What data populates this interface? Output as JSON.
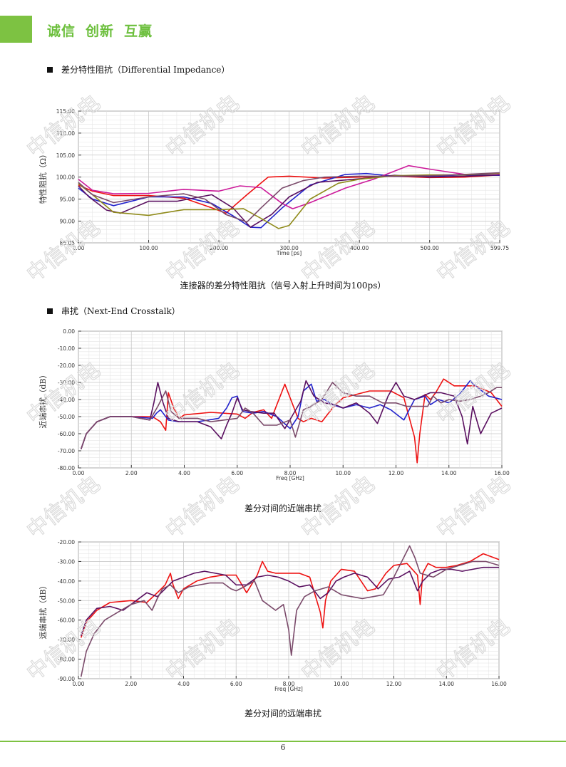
{
  "header": {
    "slogan": [
      "诚信",
      "创新",
      "互赢"
    ]
  },
  "sections": {
    "impedance_heading": "差分特性阻抗（Differential Impedance）",
    "crosstalk_heading": "串扰（Next-End Crosstalk）"
  },
  "captions": {
    "impedance": "连接器的差分特性阻抗（信号入射上升时间为100ps）",
    "next": "差分对间的近端串扰",
    "fext": "差分对间的远端串扰"
  },
  "watermark_text": "中信机电",
  "page_number": "6",
  "colors": {
    "brand_green": "#7dc242",
    "red": "#ee1111",
    "blue": "#2222cc",
    "magenta": "#cc1a9a",
    "purple": "#5a1060",
    "olive": "#8f8a1a",
    "mauve": "#7a4a6a"
  },
  "chart_data": [
    {
      "type": "line",
      "title": "",
      "xlabel": "Time [ps]",
      "ylabel": "特性阻抗（Ω）",
      "xlim": [
        0,
        599.75
      ],
      "ylim": [
        85.05,
        115.0
      ],
      "xticks": [
        "0.00",
        "100.00",
        "200.00",
        "300.00",
        "400.00",
        "500.00",
        "599.75"
      ],
      "yticks": [
        "115.00",
        "110.00",
        "105.00",
        "100.00",
        "95.00",
        "90.00",
        "85.05"
      ],
      "series": [
        {
          "color": "#ee1111",
          "x": [
            0,
            20,
            50,
            100,
            150,
            190,
            210,
            240,
            270,
            300,
            350,
            400,
            450,
            500,
            550,
            599.75
          ],
          "y": [
            98.2,
            96.8,
            95.8,
            95.8,
            95.2,
            93,
            91.8,
            96,
            100,
            100.2,
            99.8,
            100,
            100.2,
            99.9,
            100,
            100.5
          ]
        },
        {
          "color": "#2222cc",
          "x": [
            0,
            20,
            50,
            100,
            150,
            190,
            220,
            245,
            260,
            290,
            330,
            380,
            410,
            450,
            500,
            550,
            599.75
          ],
          "y": [
            97.5,
            95,
            93.5,
            95.5,
            95.5,
            94,
            91.2,
            88.6,
            88.5,
            93,
            98.2,
            100.6,
            100.8,
            100.2,
            100.2,
            100.5,
            100.4
          ]
        },
        {
          "color": "#cc1a9a",
          "x": [
            0,
            20,
            50,
            100,
            150,
            200,
            230,
            260,
            290,
            305,
            330,
            380,
            420,
            470,
            500,
            550,
            599.75
          ],
          "y": [
            99.5,
            97,
            96.2,
            96.3,
            97.2,
            96.8,
            98,
            97.6,
            94,
            92.8,
            94.2,
            97.5,
            99.5,
            102.6,
            101.8,
            100.6,
            100.8
          ]
        },
        {
          "color": "#5a1060",
          "x": [
            0,
            15,
            40,
            60,
            100,
            140,
            190,
            220,
            245,
            275,
            300,
            340,
            400,
            450,
            500,
            550,
            599.75
          ],
          "y": [
            98,
            95.5,
            92.5,
            91.8,
            94.5,
            94.5,
            96,
            93,
            88.6,
            91.5,
            95.5,
            98.8,
            99.6,
            100.4,
            100,
            100.2,
            100.5
          ]
        },
        {
          "color": "#8f8a1a",
          "x": [
            0,
            20,
            50,
            100,
            150,
            200,
            235,
            260,
            285,
            300,
            330,
            370,
            400,
            450,
            500,
            550,
            599.75
          ],
          "y": [
            98.5,
            96,
            92,
            91.3,
            92.6,
            92.6,
            92.8,
            90.6,
            88.3,
            89,
            95,
            98.6,
            99.5,
            100.3,
            100.5,
            100.5,
            100.9
          ]
        },
        {
          "color": "#7a4a6a",
          "x": [
            0,
            20,
            50,
            100,
            150,
            180,
            210,
            240,
            260,
            290,
            320,
            350,
            400,
            450,
            500,
            550,
            599.75
          ],
          "y": [
            98.8,
            96,
            94.2,
            95.5,
            96.2,
            95,
            91.5,
            89.8,
            93,
            97.5,
            99.2,
            100,
            100.2,
            100.2,
            100.3,
            100.6,
            101
          ]
        }
      ]
    },
    {
      "type": "line",
      "title": "",
      "xlabel": "Freq [GHz]",
      "ylabel": "近端串扰（dB）",
      "xlim": [
        0,
        16
      ],
      "ylim": [
        -80,
        0
      ],
      "xticks": [
        "0.00",
        "2.00",
        "4.00",
        "6.00",
        "8.00",
        "10.00",
        "12.00",
        "14.00",
        "16.00"
      ],
      "yticks": [
        "0.00",
        "-10.00",
        "-20.00",
        "-30.00",
        "-40.00",
        "-50.00",
        "-60.00",
        "-70.00",
        "-80.00"
      ],
      "series": [
        {
          "color": "#ee1111",
          "x": [
            0.1,
            0.3,
            0.7,
            1.2,
            2,
            2.8,
            3.1,
            3.3,
            3.4,
            3.6,
            3.8,
            4,
            5,
            6,
            6.3,
            6.6,
            7,
            7.3,
            7.5,
            7.8,
            8.3,
            8.5,
            8.8,
            9.2,
            9.6,
            10,
            11,
            11.8,
            12.3,
            12.7,
            12.8,
            12.9,
            13.1,
            13.3,
            13.5,
            13.8,
            14.2,
            14.6,
            15,
            15.6,
            16
          ],
          "y": [
            -69,
            -60,
            -53,
            -50,
            -50,
            -50,
            -53,
            -58,
            -36,
            -45,
            -51,
            -49,
            -47.5,
            -48.5,
            -51,
            -47.5,
            -46,
            -51,
            -43,
            -31,
            -51,
            -53,
            -51,
            -53,
            -45,
            -39,
            -35,
            -35,
            -39,
            -62,
            -77,
            -60,
            -37,
            -40,
            -36,
            -28,
            -32,
            -32,
            -32,
            -36,
            -44
          ]
        },
        {
          "color": "#2222cc",
          "x": [
            0.1,
            0.3,
            0.7,
            1.2,
            2,
            2.8,
            2.95,
            3.1,
            3.4,
            3.8,
            4.5,
            5.3,
            5.6,
            5.8,
            6,
            6.2,
            6.6,
            7,
            7.5,
            8,
            8.3,
            8.5,
            8.8,
            9,
            9.3,
            9.6,
            10,
            10.5,
            11,
            11.4,
            11.8,
            12.3,
            12.7,
            13.1,
            13.3,
            13.6,
            14,
            14.4,
            14.8,
            15,
            15.5,
            16
          ],
          "y": [
            -69,
            -60,
            -53,
            -50,
            -50,
            -51,
            -48,
            -46,
            -52,
            -53,
            -53,
            -51,
            -45,
            -39,
            -38,
            -47,
            -48,
            -47,
            -50,
            -57,
            -50,
            -35,
            -31,
            -41,
            -40,
            -43,
            -45,
            -43,
            -45,
            -43,
            -46,
            -52,
            -40,
            -38,
            -43,
            -40,
            -42,
            -37,
            -29,
            -32,
            -38,
            -40
          ]
        },
        {
          "color": "#5a1060",
          "x": [
            0.1,
            0.3,
            0.7,
            1.2,
            2,
            2.7,
            2.85,
            3,
            3.2,
            3.4,
            3.8,
            4.5,
            5,
            5.4,
            5.6,
            5.8,
            6,
            6.2,
            6.5,
            7,
            7.4,
            7.8,
            8.1,
            8.4,
            8.6,
            8.9,
            9.3,
            9.7,
            10,
            10.5,
            11,
            11.3,
            11.7,
            12,
            12.3,
            12.7,
            13,
            13.3,
            13.7,
            14.2,
            14.5,
            14.7,
            14.9,
            15.2,
            15.6,
            16
          ],
          "y": [
            -69,
            -60,
            -53,
            -50,
            -50,
            -52,
            -42,
            -30,
            -42,
            -51,
            -53,
            -53,
            -56,
            -63,
            -55,
            -48,
            -39,
            -46,
            -47,
            -48,
            -48,
            -57,
            -49,
            -41,
            -29,
            -38,
            -42,
            -43,
            -45,
            -42,
            -48,
            -54,
            -38,
            -30,
            -38,
            -40,
            -38,
            -36,
            -36,
            -38,
            -50,
            -66,
            -44,
            -60,
            -48,
            -45
          ]
        },
        {
          "color": "#7a4a6a",
          "x": [
            0.1,
            0.3,
            0.7,
            1.2,
            2,
            2.7,
            3,
            3.3,
            3.5,
            3.8,
            4.5,
            5,
            5.5,
            6,
            6.3,
            6.6,
            7,
            7.5,
            8,
            8.2,
            8.5,
            8.8,
            9.2,
            9.6,
            10,
            10.5,
            11,
            11.5,
            12,
            12.4,
            12.8,
            13.2,
            13.4,
            13.7,
            14,
            14.4,
            14.8,
            15.2,
            15.5,
            15.8,
            16
          ],
          "y": [
            -69,
            -60,
            -53,
            -50,
            -50,
            -52,
            -44,
            -35,
            -47,
            -51,
            -51,
            -53,
            -52,
            -51,
            -45,
            -48,
            -55,
            -55,
            -52,
            -62,
            -46,
            -44,
            -40,
            -30,
            -36,
            -38,
            -38,
            -42,
            -42,
            -44,
            -44,
            -44,
            -38,
            -42,
            -40,
            -41,
            -40,
            -38,
            -36,
            -33,
            -33
          ]
        }
      ]
    },
    {
      "type": "line",
      "title": "",
      "xlabel": "Freq [GHz]",
      "ylabel": "远端串扰（dB）",
      "xlim": [
        0,
        16
      ],
      "ylim": [
        -90,
        -20
      ],
      "xticks": [
        "0.00",
        "2.00",
        "4.00",
        "6.00",
        "8.00",
        "10.00",
        "12.00",
        "14.00",
        "16.00"
      ],
      "yticks": [
        "-20.00",
        "-30.00",
        "-40.00",
        "-50.00",
        "-60.00",
        "-70.00",
        "-80.00",
        "-90.00"
      ],
      "series": [
        {
          "color": "#ee1111",
          "x": [
            0.1,
            0.3,
            0.7,
            1.2,
            2,
            2.6,
            3,
            3.3,
            3.5,
            3.6,
            3.8,
            4,
            4.5,
            5,
            5.5,
            6,
            6.4,
            6.8,
            7,
            7.2,
            7.5,
            8,
            8.4,
            8.8,
            9.2,
            9.3,
            9.4,
            9.6,
            10,
            10.5,
            11,
            11.3,
            11.7,
            12,
            12.5,
            12.9,
            13,
            13.1,
            13.3,
            13.6,
            14,
            14.4,
            14.9,
            15.4,
            16
          ],
          "y": [
            -69,
            -61,
            -55,
            -51,
            -50,
            -51,
            -46,
            -42,
            -36,
            -42,
            -49,
            -44,
            -40,
            -38,
            -37,
            -37,
            -46,
            -37,
            -30,
            -35,
            -36,
            -36,
            -36,
            -38,
            -56,
            -64,
            -50,
            -40,
            -34,
            -35,
            -45,
            -44,
            -36,
            -32,
            -31,
            -37,
            -52,
            -36,
            -31,
            -33,
            -33,
            -32,
            -30,
            -26,
            -29
          ]
        },
        {
          "color": "#5a1060",
          "x": [
            0.1,
            0.3,
            0.7,
            1.2,
            1.7,
            2.2,
            2.6,
            3,
            3.3,
            3.6,
            4,
            4.4,
            4.8,
            5.2,
            5.6,
            6,
            6.4,
            6.8,
            7.2,
            7.6,
            8,
            8.4,
            8.8,
            9.2,
            9.5,
            9.8,
            10.1,
            10.5,
            11,
            11.4,
            11.8,
            12.2,
            12.6,
            12.9,
            13.1,
            13.4,
            13.8,
            14.2,
            14.6,
            15,
            15.4,
            16
          ],
          "y": [
            -68,
            -60,
            -54,
            -53,
            -55,
            -50,
            -46,
            -48,
            -44,
            -40,
            -38,
            -36,
            -35,
            -36,
            -37,
            -42,
            -42,
            -38,
            -37,
            -38,
            -40,
            -43,
            -42,
            -49,
            -46,
            -40,
            -38,
            -36,
            -38,
            -44,
            -39,
            -38,
            -35,
            -45,
            -40,
            -36,
            -34,
            -34,
            -35,
            -34,
            -33,
            -33
          ]
        },
        {
          "color": "#7a4a6a",
          "x": [
            0.1,
            0.3,
            0.6,
            1,
            1.5,
            2,
            2.5,
            2.8,
            3,
            3.2,
            3.5,
            3.8,
            4.2,
            4.6,
            5,
            5.5,
            5.8,
            6,
            6.3,
            6.7,
            7,
            7.5,
            7.8,
            8,
            8.1,
            8.3,
            8.6,
            9,
            9.5,
            10,
            10.4,
            10.8,
            11.2,
            11.6,
            12,
            12.3,
            12.6,
            12.8,
            13,
            13.5,
            14,
            14.5,
            15,
            15.5,
            16
          ],
          "y": [
            -89,
            -76,
            -67,
            -60,
            -56,
            -52,
            -50,
            -55,
            -49,
            -44,
            -42,
            -46,
            -43,
            -42,
            -41,
            -41,
            -44,
            -45,
            -43,
            -40,
            -50,
            -55,
            -52,
            -65,
            -78,
            -55,
            -48,
            -45,
            -43,
            -47,
            -48,
            -49,
            -48,
            -47,
            -38,
            -30,
            -22,
            -28,
            -36,
            -38,
            -34,
            -32,
            -30,
            -30,
            -32
          ]
        }
      ]
    }
  ]
}
